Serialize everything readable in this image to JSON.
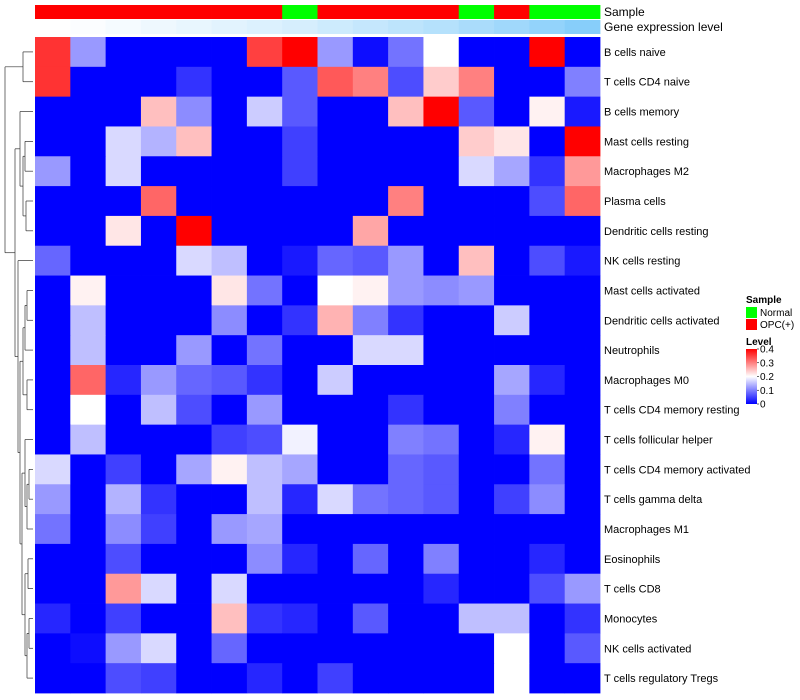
{
  "chart_data": {
    "type": "heatmap",
    "title": "",
    "annotations": [
      {
        "label": "Sample",
        "values": [
          "OPC(+)",
          "OPC(+)",
          "OPC(+)",
          "OPC(+)",
          "OPC(+)",
          "OPC(+)",
          "OPC(+)",
          "Normal",
          "OPC(+)",
          "OPC(+)",
          "OPC(+)",
          "OPC(+)",
          "Normal",
          "OPC(+)",
          "Normal",
          "Normal"
        ]
      },
      {
        "label": "Gene expression level",
        "values": [
          0.0,
          0.02,
          0.05,
          0.08,
          0.11,
          0.14,
          0.17,
          0.2,
          0.24,
          0.28,
          0.32,
          0.36,
          0.41,
          0.46,
          0.52,
          0.58
        ]
      }
    ],
    "rows": [
      "B cells naive",
      "T cells CD4 naive",
      "B cells memory",
      "Mast cells resting",
      "Macrophages M2",
      "Plasma cells",
      "Dendritic cells resting",
      "NK cells resting",
      "Mast cells activated",
      "Dendritic cells activated",
      "Neutrophils",
      "Macrophages M0",
      "T cells CD4 memory resting",
      "T cells follicular helper",
      "T cells CD4 memory activated",
      "T cells gamma delta",
      "Macrophages M1",
      "Eosinophils",
      "T cells CD8",
      "Monocytes",
      "NK cells activated",
      "T cells regulatory  Tregs"
    ],
    "values": [
      [
        0.36,
        0.12,
        0,
        0,
        0,
        0,
        0.35,
        0.42,
        0.12,
        0.01,
        0.09,
        0.2,
        0,
        0,
        0.42,
        0
      ],
      [
        0.36,
        0,
        0,
        0,
        0.04,
        0,
        0,
        0.07,
        0.33,
        0.3,
        0.06,
        0.24,
        0.3,
        0,
        0,
        0.1
      ],
      [
        0,
        0,
        0,
        0.25,
        0.11,
        0,
        0.16,
        0.07,
        0,
        0,
        0.25,
        0.42,
        0.07,
        0,
        0.21,
        0.02
      ],
      [
        0,
        0,
        0.17,
        0.14,
        0.25,
        0,
        0,
        0.05,
        0,
        0,
        0,
        0,
        0.24,
        0.22,
        0,
        0.42
      ],
      [
        0.12,
        0,
        0.17,
        0,
        0,
        0,
        0,
        0.05,
        0,
        0,
        0,
        0,
        0.17,
        0.13,
        0.04,
        0.28
      ],
      [
        0,
        0,
        0,
        0.32,
        0,
        0,
        0,
        0,
        0,
        0,
        0.3,
        0,
        0,
        0,
        0.06,
        0.32
      ],
      [
        0,
        0,
        0.22,
        0,
        0.41,
        0,
        0,
        0,
        0,
        0.27,
        0,
        0,
        0,
        0,
        0,
        0
      ],
      [
        0.08,
        0,
        0,
        0,
        0.17,
        0.15,
        0,
        0.02,
        0.08,
        0.07,
        0.12,
        0,
        0.25,
        0,
        0.06,
        0.02
      ],
      [
        0,
        0.21,
        0,
        0,
        0,
        0.22,
        0.09,
        0,
        0.2,
        0.21,
        0.12,
        0.11,
        0.12,
        0,
        0,
        0
      ],
      [
        0,
        0.15,
        0,
        0,
        0,
        0.11,
        0,
        0.04,
        0.26,
        0.1,
        0.04,
        0,
        0,
        0.16,
        0,
        0
      ],
      [
        0,
        0.15,
        0,
        0,
        0.12,
        0,
        0.09,
        0,
        0,
        0.17,
        0.17,
        0,
        0,
        0,
        0,
        0
      ],
      [
        0,
        0.32,
        0.03,
        0.12,
        0.08,
        0.07,
        0.04,
        0,
        0.16,
        0,
        0,
        0,
        0,
        0.13,
        0.03,
        0
      ],
      [
        0,
        0.2,
        0,
        0.15,
        0.06,
        0,
        0.12,
        0,
        0,
        0,
        0.04,
        0,
        0,
        0.1,
        0,
        0
      ],
      [
        0,
        0.15,
        0,
        0,
        0,
        0.05,
        0.06,
        0.19,
        0,
        0,
        0.1,
        0.09,
        0,
        0.03,
        0.21,
        0
      ],
      [
        0.17,
        0,
        0.05,
        0,
        0.13,
        0.21,
        0.15,
        0.13,
        0,
        0,
        0.08,
        0.07,
        0,
        0,
        0.09,
        0
      ],
      [
        0.12,
        0,
        0.14,
        0.04,
        0,
        0,
        0.15,
        0.03,
        0.17,
        0.09,
        0.08,
        0.07,
        0,
        0.05,
        0.11,
        0
      ],
      [
        0.09,
        0,
        0.11,
        0.05,
        0,
        0.12,
        0.13,
        0,
        0,
        0,
        0,
        0,
        0,
        0,
        0,
        0
      ],
      [
        0,
        0,
        0.06,
        0,
        0,
        0,
        0.11,
        0.03,
        0,
        0.08,
        0,
        0.1,
        0,
        0,
        0.03,
        0
      ],
      [
        0,
        0,
        0.28,
        0.17,
        0,
        0.17,
        0,
        0,
        0,
        0,
        0,
        0.03,
        0,
        0,
        0.06,
        0.12
      ],
      [
        0.03,
        0,
        0.05,
        0,
        0,
        0.25,
        0.04,
        0.03,
        0,
        0.07,
        0,
        0,
        0.15,
        0.15,
        0,
        0.04
      ],
      [
        0,
        0.01,
        0.12,
        0.17,
        0,
        0.08,
        0,
        0,
        0,
        0,
        0,
        0,
        0,
        0.2,
        0,
        0.07
      ],
      [
        0,
        0,
        0.06,
        0.05,
        0,
        0,
        0.03,
        0,
        0.05,
        0,
        0,
        0,
        0,
        0.2,
        0,
        0
      ]
    ],
    "color_scale": {
      "min": 0,
      "max": 0.4,
      "low": "#0000ff",
      "mid": "#ffffff",
      "high": "#ff0000",
      "midpoint": 0.2
    },
    "legend": {
      "sample_title": "Sample",
      "sample_items": [
        {
          "label": "Normal",
          "color": "#00ff00"
        },
        {
          "label": "OPC(+)",
          "color": "#ff0000"
        }
      ],
      "level_title": "Level",
      "level_ticks": [
        "0.4",
        "0.3",
        "0.2",
        "0.1",
        "0"
      ]
    },
    "colors": {
      "Normal": "#00ff00",
      "OPC(+)": "#ff0000",
      "expr_low": "#ffffff",
      "expr_high": "#87cefa"
    },
    "dendrogram": "rows-clustered"
  }
}
